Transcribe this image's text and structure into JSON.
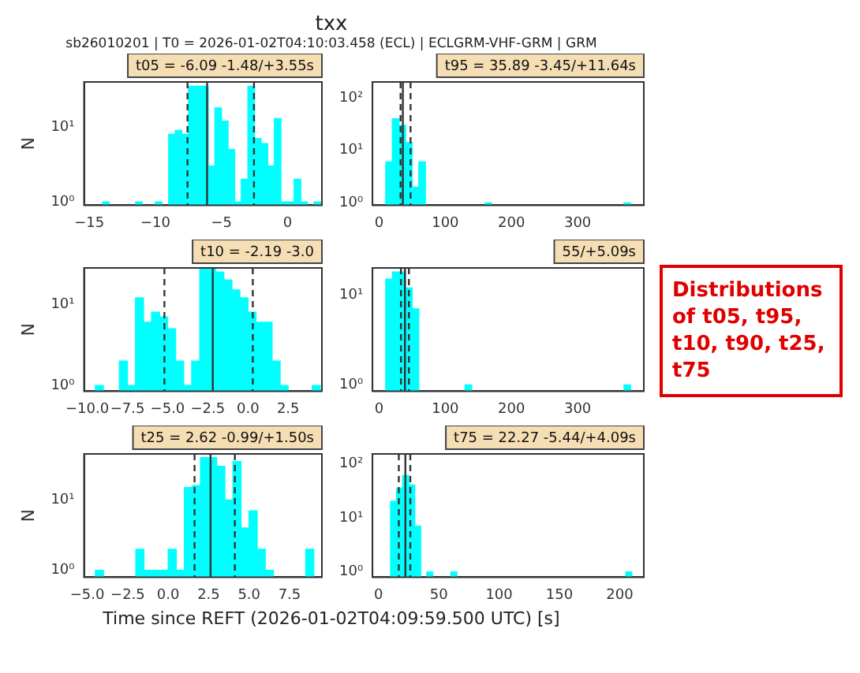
{
  "chart_data": [
    {
      "type": "histogram",
      "title": "txx",
      "subtitle": "sb26010201 | T0 = 2026-01-02T04:10:03.458 (ECL) | ECLGRM-VHF-GRM | GRM",
      "ylabel": "N",
      "annotations": [
        "t05 = -6.09 -1.48/+3.55s"
      ],
      "color": "#00ffff",
      "log": "y",
      "grid": false,
      "legend": false,
      "bins": [
        -15,
        -14.5,
        -14,
        -13.5,
        -13,
        -12.5,
        -12,
        -11.5,
        -11,
        -10.5,
        -10,
        -9.5,
        -9,
        -8.5,
        -8,
        -7.5,
        -7,
        -6.5,
        -6,
        -5.5,
        -5,
        -4.5,
        -4,
        -3.5,
        -3,
        -2.5,
        -2,
        -1.5,
        -1,
        -0.5,
        0,
        0.5,
        1,
        1.5,
        2,
        2.5
      ],
      "values": [
        null,
        null,
        1,
        null,
        null,
        null,
        null,
        1,
        null,
        null,
        1,
        null,
        8,
        9,
        8,
        35,
        35,
        35,
        3,
        18,
        12,
        5,
        1,
        2,
        35,
        7,
        6,
        3,
        13,
        1,
        1,
        2,
        1,
        null,
        1
      ],
      "xlim": [
        -15.4,
        2.6
      ],
      "xticks": [
        {
          "value": -15,
          "label": "−15"
        },
        {
          "value": -10,
          "label": "−10"
        },
        {
          "value": -5,
          "label": "−5"
        },
        0
      ],
      "ylim": [
        0.9,
        40
      ],
      "yticks": [
        {
          "value": 1,
          "label": "10⁰"
        },
        {
          "value": 10,
          "label": "10¹"
        }
      ],
      "ref_lines": [
        {
          "axis": "x",
          "value": -7.57,
          "color": "#333333",
          "line_style": "dashed"
        },
        {
          "axis": "x",
          "value": -6.09,
          "color": "#333333",
          "line_style": "solid"
        },
        {
          "axis": "x",
          "value": -2.54,
          "color": "#333333",
          "line_style": "dashed"
        }
      ]
    },
    {
      "type": "histogram",
      "annotations": [
        "t95 = 35.89 -3.45/+11.64s"
      ],
      "color": "#00ffff",
      "log": "y",
      "grid": false,
      "legend": false,
      "bins": [
        0,
        10,
        20,
        30,
        40,
        50,
        60,
        70,
        80,
        90,
        100,
        110,
        120,
        130,
        140,
        150,
        160,
        170,
        180,
        190,
        200,
        210,
        220,
        230,
        240,
        250,
        260,
        270,
        280,
        290,
        300,
        310,
        320,
        330,
        340,
        350,
        360,
        370,
        380,
        390
      ],
      "values": [
        null,
        6,
        40,
        30,
        14,
        2,
        6,
        null,
        null,
        null,
        null,
        null,
        null,
        null,
        null,
        null,
        1,
        null,
        null,
        null,
        null,
        null,
        null,
        null,
        null,
        null,
        null,
        null,
        null,
        null,
        null,
        null,
        null,
        null,
        null,
        null,
        null,
        1,
        null
      ],
      "xlim": [
        -10,
        400
      ],
      "xticks": [
        0,
        100,
        200,
        300
      ],
      "ylim": [
        0.9,
        200
      ],
      "yticks": [
        {
          "value": 1,
          "label": "10⁰"
        },
        {
          "value": 10,
          "label": "10¹"
        },
        {
          "value": 100,
          "label": "10²"
        }
      ],
      "ref_lines": [
        {
          "axis": "x",
          "value": 32.44,
          "color": "#333333",
          "line_style": "dashed"
        },
        {
          "axis": "x",
          "value": 35.89,
          "color": "#333333",
          "line_style": "solid"
        },
        {
          "axis": "x",
          "value": 47.53,
          "color": "#333333",
          "line_style": "dashed"
        }
      ]
    },
    {
      "type": "histogram",
      "ylabel": "N",
      "annotations": [
        "t10 = -2.19 -3.0"
      ],
      "color": "#00ffff",
      "log": "y",
      "grid": false,
      "legend": false,
      "bins": [
        -10,
        -9.5,
        -9,
        -8.5,
        -8,
        -7.5,
        -7,
        -6.5,
        -6,
        -5.5,
        -5,
        -4.5,
        -4,
        -3.5,
        -3,
        -2.5,
        -2,
        -1.5,
        -1,
        -0.5,
        0,
        0.5,
        1,
        1.5,
        2,
        2.5,
        3,
        3.5,
        4,
        4.5
      ],
      "values": [
        null,
        1,
        null,
        null,
        2,
        1,
        12,
        6,
        8,
        7,
        5,
        2,
        1,
        2,
        27,
        27,
        25,
        20,
        15,
        12,
        8,
        6,
        6,
        2,
        1,
        null,
        null,
        null,
        1
      ],
      "xlim": [
        -10.2,
        4.6
      ],
      "xticks": [
        {
          "value": -10,
          "label": "−10.0"
        },
        {
          "value": -7.5,
          "label": "−7.5"
        },
        {
          "value": -5,
          "label": "−5.0"
        },
        {
          "value": -2.5,
          "label": "−2.5"
        },
        {
          "value": 0,
          "label": "0.0"
        },
        2.5
      ],
      "ylim": [
        0.85,
        28
      ],
      "yticks": [
        {
          "value": 1,
          "label": "10⁰"
        },
        {
          "value": 10,
          "label": "10¹"
        }
      ],
      "ref_lines": [
        {
          "axis": "x",
          "value": -5.2,
          "color": "#333333",
          "line_style": "dashed"
        },
        {
          "axis": "x",
          "value": -2.19,
          "color": "#333333",
          "line_style": "solid"
        },
        {
          "axis": "x",
          "value": 0.3,
          "color": "#333333",
          "line_style": "dashed"
        }
      ]
    },
    {
      "type": "histogram",
      "annotations": [
        "55/+5.09s"
      ],
      "color": "#00ffff",
      "log": "y",
      "grid": false,
      "legend": false,
      "bins": [
        0,
        10,
        20,
        30,
        40,
        50,
        60,
        70,
        80,
        90,
        100,
        110,
        120,
        130,
        140,
        150,
        160,
        170,
        180,
        190,
        200,
        210,
        220,
        230,
        240,
        250,
        260,
        270,
        280,
        290,
        300,
        310,
        320,
        330,
        340,
        350,
        360,
        370,
        380,
        390
      ],
      "values": [
        null,
        15,
        18,
        18,
        12,
        7,
        null,
        null,
        null,
        null,
        null,
        null,
        null,
        1,
        null,
        null,
        null,
        null,
        null,
        null,
        null,
        null,
        null,
        null,
        null,
        null,
        null,
        null,
        null,
        null,
        null,
        null,
        null,
        null,
        null,
        null,
        null,
        1,
        null
      ],
      "xlim": [
        -10,
        400
      ],
      "xticks": [
        0,
        100,
        200,
        300
      ],
      "ylim": [
        0.85,
        20
      ],
      "yticks": [
        {
          "value": 1,
          "label": "10⁰"
        },
        {
          "value": 10,
          "label": "10¹"
        }
      ],
      "ref_lines": [
        {
          "axis": "x",
          "value": 33,
          "color": "#333333",
          "line_style": "dashed"
        },
        {
          "axis": "x",
          "value": 39,
          "color": "#333333",
          "line_style": "solid"
        },
        {
          "axis": "x",
          "value": 45,
          "color": "#333333",
          "line_style": "dashed"
        }
      ]
    },
    {
      "type": "histogram",
      "ylabel": "N",
      "xlabel": "Time since REFT (2026-01-02T04:09:59.500 UTC) [s]",
      "annotations": [
        "t25 = 2.62 -0.99/+1.50s"
      ],
      "color": "#00ffff",
      "log": "y",
      "grid": false,
      "legend": false,
      "bins": [
        -5,
        -4.5,
        -4,
        -3.5,
        -3,
        -2.5,
        -2,
        -1.5,
        -1,
        -0.5,
        0,
        0.5,
        1,
        1.5,
        2,
        2.5,
        3,
        3.5,
        4,
        4.5,
        5,
        5.5,
        6,
        6.5,
        7,
        7.5,
        8,
        8.5,
        9
      ],
      "values": [
        null,
        1,
        null,
        null,
        null,
        null,
        2,
        1,
        1,
        1,
        2,
        1,
        15,
        16,
        40,
        40,
        30,
        10,
        35,
        4,
        7,
        2,
        1,
        null,
        null,
        null,
        null,
        2
      ],
      "xlim": [
        -5.2,
        9.5
      ],
      "xticks": [
        {
          "value": -5,
          "label": "−5.0"
        },
        {
          "value": -2.5,
          "label": "−2.5"
        },
        {
          "value": 0,
          "label": "0.0"
        },
        2.5,
        {
          "value": 5,
          "label": "5.0"
        },
        7.5
      ],
      "ylim": [
        0.8,
        45
      ],
      "yticks": [
        {
          "value": 1,
          "label": "10⁰"
        },
        {
          "value": 10,
          "label": "10¹"
        }
      ],
      "ref_lines": [
        {
          "axis": "x",
          "value": 1.63,
          "color": "#333333",
          "line_style": "dashed"
        },
        {
          "axis": "x",
          "value": 2.62,
          "color": "#333333",
          "line_style": "solid"
        },
        {
          "axis": "x",
          "value": 4.12,
          "color": "#333333",
          "line_style": "dashed"
        }
      ]
    },
    {
      "type": "histogram",
      "annotations": [
        "t75 = 22.27 -5.44/+4.09s"
      ],
      "color": "#00ffff",
      "log": "y",
      "grid": false,
      "legend": false,
      "bins": [
        0,
        5,
        10,
        15,
        20,
        25,
        30,
        35,
        40,
        45,
        50,
        55,
        60,
        65,
        70,
        75,
        80,
        85,
        90,
        95,
        100,
        105,
        110,
        115,
        120,
        125,
        130,
        135,
        140,
        145,
        150,
        155,
        160,
        165,
        170,
        175,
        180,
        185,
        190,
        195,
        200,
        205,
        210,
        215
      ],
      "values": [
        null,
        null,
        20,
        35,
        60,
        40,
        7,
        null,
        1,
        null,
        null,
        null,
        1,
        null,
        null,
        null,
        null,
        null,
        null,
        null,
        null,
        null,
        null,
        null,
        null,
        null,
        null,
        null,
        null,
        null,
        null,
        null,
        null,
        null,
        null,
        null,
        null,
        null,
        null,
        null,
        null,
        1,
        null
      ],
      "xlim": [
        -5,
        220
      ],
      "xticks": [
        0,
        50,
        100,
        150,
        200
      ],
      "ylim": [
        0.8,
        150
      ],
      "yticks": [
        {
          "value": 1,
          "label": "10⁰"
        },
        {
          "value": 10,
          "label": "10¹"
        },
        {
          "value": 100,
          "label": "10²"
        }
      ],
      "ref_lines": [
        {
          "axis": "x",
          "value": 16.83,
          "color": "#333333",
          "line_style": "dashed"
        },
        {
          "axis": "x",
          "value": 22.27,
          "color": "#333333",
          "line_style": "solid"
        },
        {
          "axis": "x",
          "value": 26.36,
          "color": "#333333",
          "line_style": "dashed"
        }
      ]
    },
    {
      "type": "other",
      "annotations": [
        "Distributions of t05, t95, t10, t90, t25, t75"
      ]
    }
  ]
}
